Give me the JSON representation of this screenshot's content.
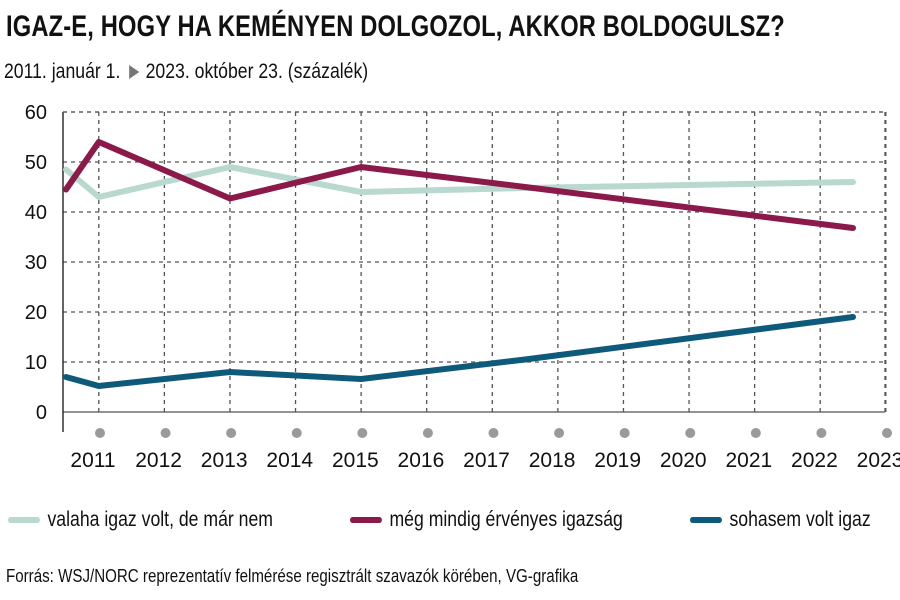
{
  "title": "IGAZ-E, HOGY HA KEMÉNYEN DOLGOZOL, AKKOR BOLDOGULSZ?",
  "subtitle": {
    "start": "2011. január 1.",
    "end": "2023. október 23. (százalék)"
  },
  "source": "Forrás: WSJ/NORC reprezentatív felmérése regisztrált szavazók körében, VG-grafika",
  "chart_data": {
    "type": "line",
    "x_categories": [
      "2011",
      "2012",
      "2013",
      "2014",
      "2015",
      "2016",
      "2017",
      "2018",
      "2019",
      "2020",
      "2021",
      "2022",
      "2023"
    ],
    "ylim": [
      0,
      60
    ],
    "yticks": [
      0,
      10,
      20,
      30,
      40,
      50,
      60
    ],
    "grid": true,
    "legend_position": "bottom",
    "series": [
      {
        "name": "valaha igaz volt, de már nem",
        "color": "#b9d8cf",
        "points": [
          [
            2011,
            48.5
          ],
          [
            2011.5,
            43
          ],
          [
            2013.5,
            49
          ],
          [
            2015.5,
            44
          ],
          [
            2018,
            44.8
          ],
          [
            2023,
            46
          ]
        ]
      },
      {
        "name": "még mindig érvényes igazság",
        "color": "#8b1a4a",
        "points": [
          [
            2011,
            44.5
          ],
          [
            2011.5,
            54
          ],
          [
            2013.5,
            42.7
          ],
          [
            2015.5,
            49
          ],
          [
            2018,
            45
          ],
          [
            2023,
            36.8
          ]
        ]
      },
      {
        "name": "sohasem volt igaz",
        "color": "#0e5a7a",
        "points": [
          [
            2011,
            7
          ],
          [
            2011.5,
            5.2
          ],
          [
            2013.5,
            8
          ],
          [
            2015.5,
            6.6
          ],
          [
            2018,
            10.5
          ],
          [
            2023,
            19
          ]
        ]
      }
    ]
  }
}
